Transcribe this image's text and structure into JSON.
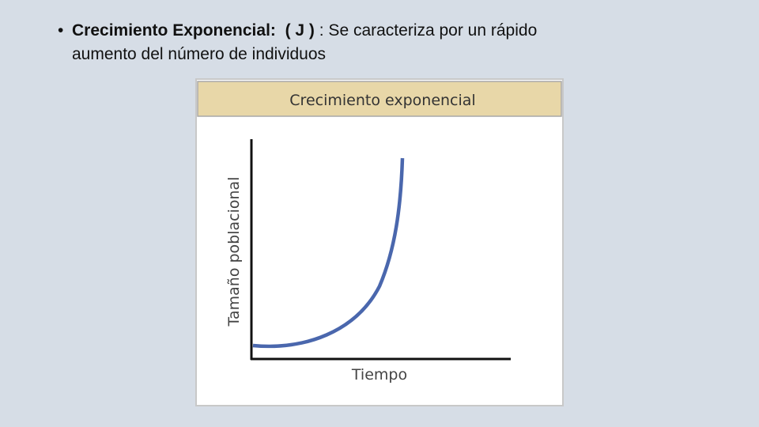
{
  "slide": {
    "bullet": {
      "term": "Crecimiento Exponencial:",
      "symbol": "( J )",
      "text": ":  Se caracteriza por un rápido",
      "continuation": "aumento del número de individuos"
    },
    "figure": {
      "title": "Crecimiento exponencial",
      "y_label": "Tamaño poblacional",
      "x_label": "Tiempo"
    }
  }
}
